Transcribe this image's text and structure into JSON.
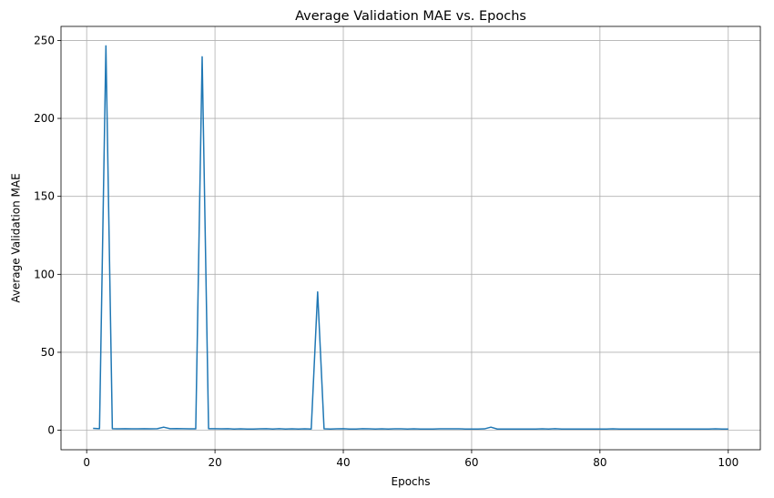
{
  "chart_data": {
    "type": "line",
    "title": "Average Validation MAE vs. Epochs",
    "xlabel": "Epochs",
    "ylabel": "Average Validation MAE",
    "xlim": [
      -4,
      105
    ],
    "ylim": [
      -12.5,
      259
    ],
    "xticks": [
      0,
      20,
      40,
      60,
      80,
      100
    ],
    "yticks": [
      0,
      50,
      100,
      150,
      200,
      250
    ],
    "grid": true,
    "legend": "none",
    "colors": {
      "line": "#1f77b4",
      "grid": "#b0b0b0",
      "axes": "#000000"
    },
    "series": [
      {
        "x": [
          1,
          2,
          3,
          4,
          5,
          6,
          7,
          8,
          9,
          10,
          11,
          12,
          13,
          14,
          15,
          16,
          17,
          18,
          19,
          20,
          21,
          22,
          23,
          24,
          25,
          26,
          27,
          28,
          29,
          30,
          31,
          32,
          33,
          34,
          35,
          36,
          37,
          38,
          39,
          40,
          41,
          42,
          43,
          44,
          45,
          46,
          47,
          48,
          49,
          50,
          51,
          52,
          53,
          54,
          55,
          56,
          57,
          58,
          59,
          60,
          61,
          62,
          63,
          64,
          65,
          66,
          67,
          68,
          69,
          70,
          71,
          72,
          73,
          74,
          75,
          76,
          77,
          78,
          79,
          80,
          81,
          82,
          83,
          84,
          85,
          86,
          87,
          88,
          89,
          90,
          91,
          92,
          93,
          94,
          95,
          96,
          97,
          98,
          99,
          100
        ],
        "y": [
          1.2,
          1.0,
          246.5,
          1.0,
          0.9,
          1.0,
          0.9,
          0.9,
          1.0,
          0.9,
          1.0,
          2.0,
          1.0,
          1.1,
          1.0,
          0.9,
          0.9,
          239.5,
          1.0,
          1.0,
          0.9,
          1.0,
          0.8,
          0.9,
          0.8,
          0.8,
          0.9,
          1.0,
          0.8,
          1.0,
          0.8,
          0.9,
          0.8,
          0.9,
          0.8,
          88.7,
          0.9,
          0.8,
          0.9,
          1.0,
          0.8,
          0.8,
          1.0,
          0.9,
          0.8,
          0.9,
          0.8,
          0.9,
          0.9,
          0.8,
          0.9,
          0.8,
          0.8,
          0.8,
          0.9,
          0.9,
          0.9,
          0.9,
          0.8,
          0.8,
          0.8,
          0.9,
          2.0,
          0.8,
          0.8,
          0.8,
          0.8,
          0.8,
          0.8,
          0.8,
          0.9,
          0.8,
          1.0,
          0.8,
          0.8,
          0.8,
          0.8,
          0.8,
          0.8,
          0.8,
          0.8,
          0.9,
          0.8,
          0.8,
          0.8,
          0.8,
          0.8,
          0.8,
          0.8,
          0.8,
          0.8,
          0.8,
          0.8,
          0.8,
          0.8,
          0.8,
          0.8,
          0.9,
          0.8,
          0.8
        ]
      }
    ]
  }
}
